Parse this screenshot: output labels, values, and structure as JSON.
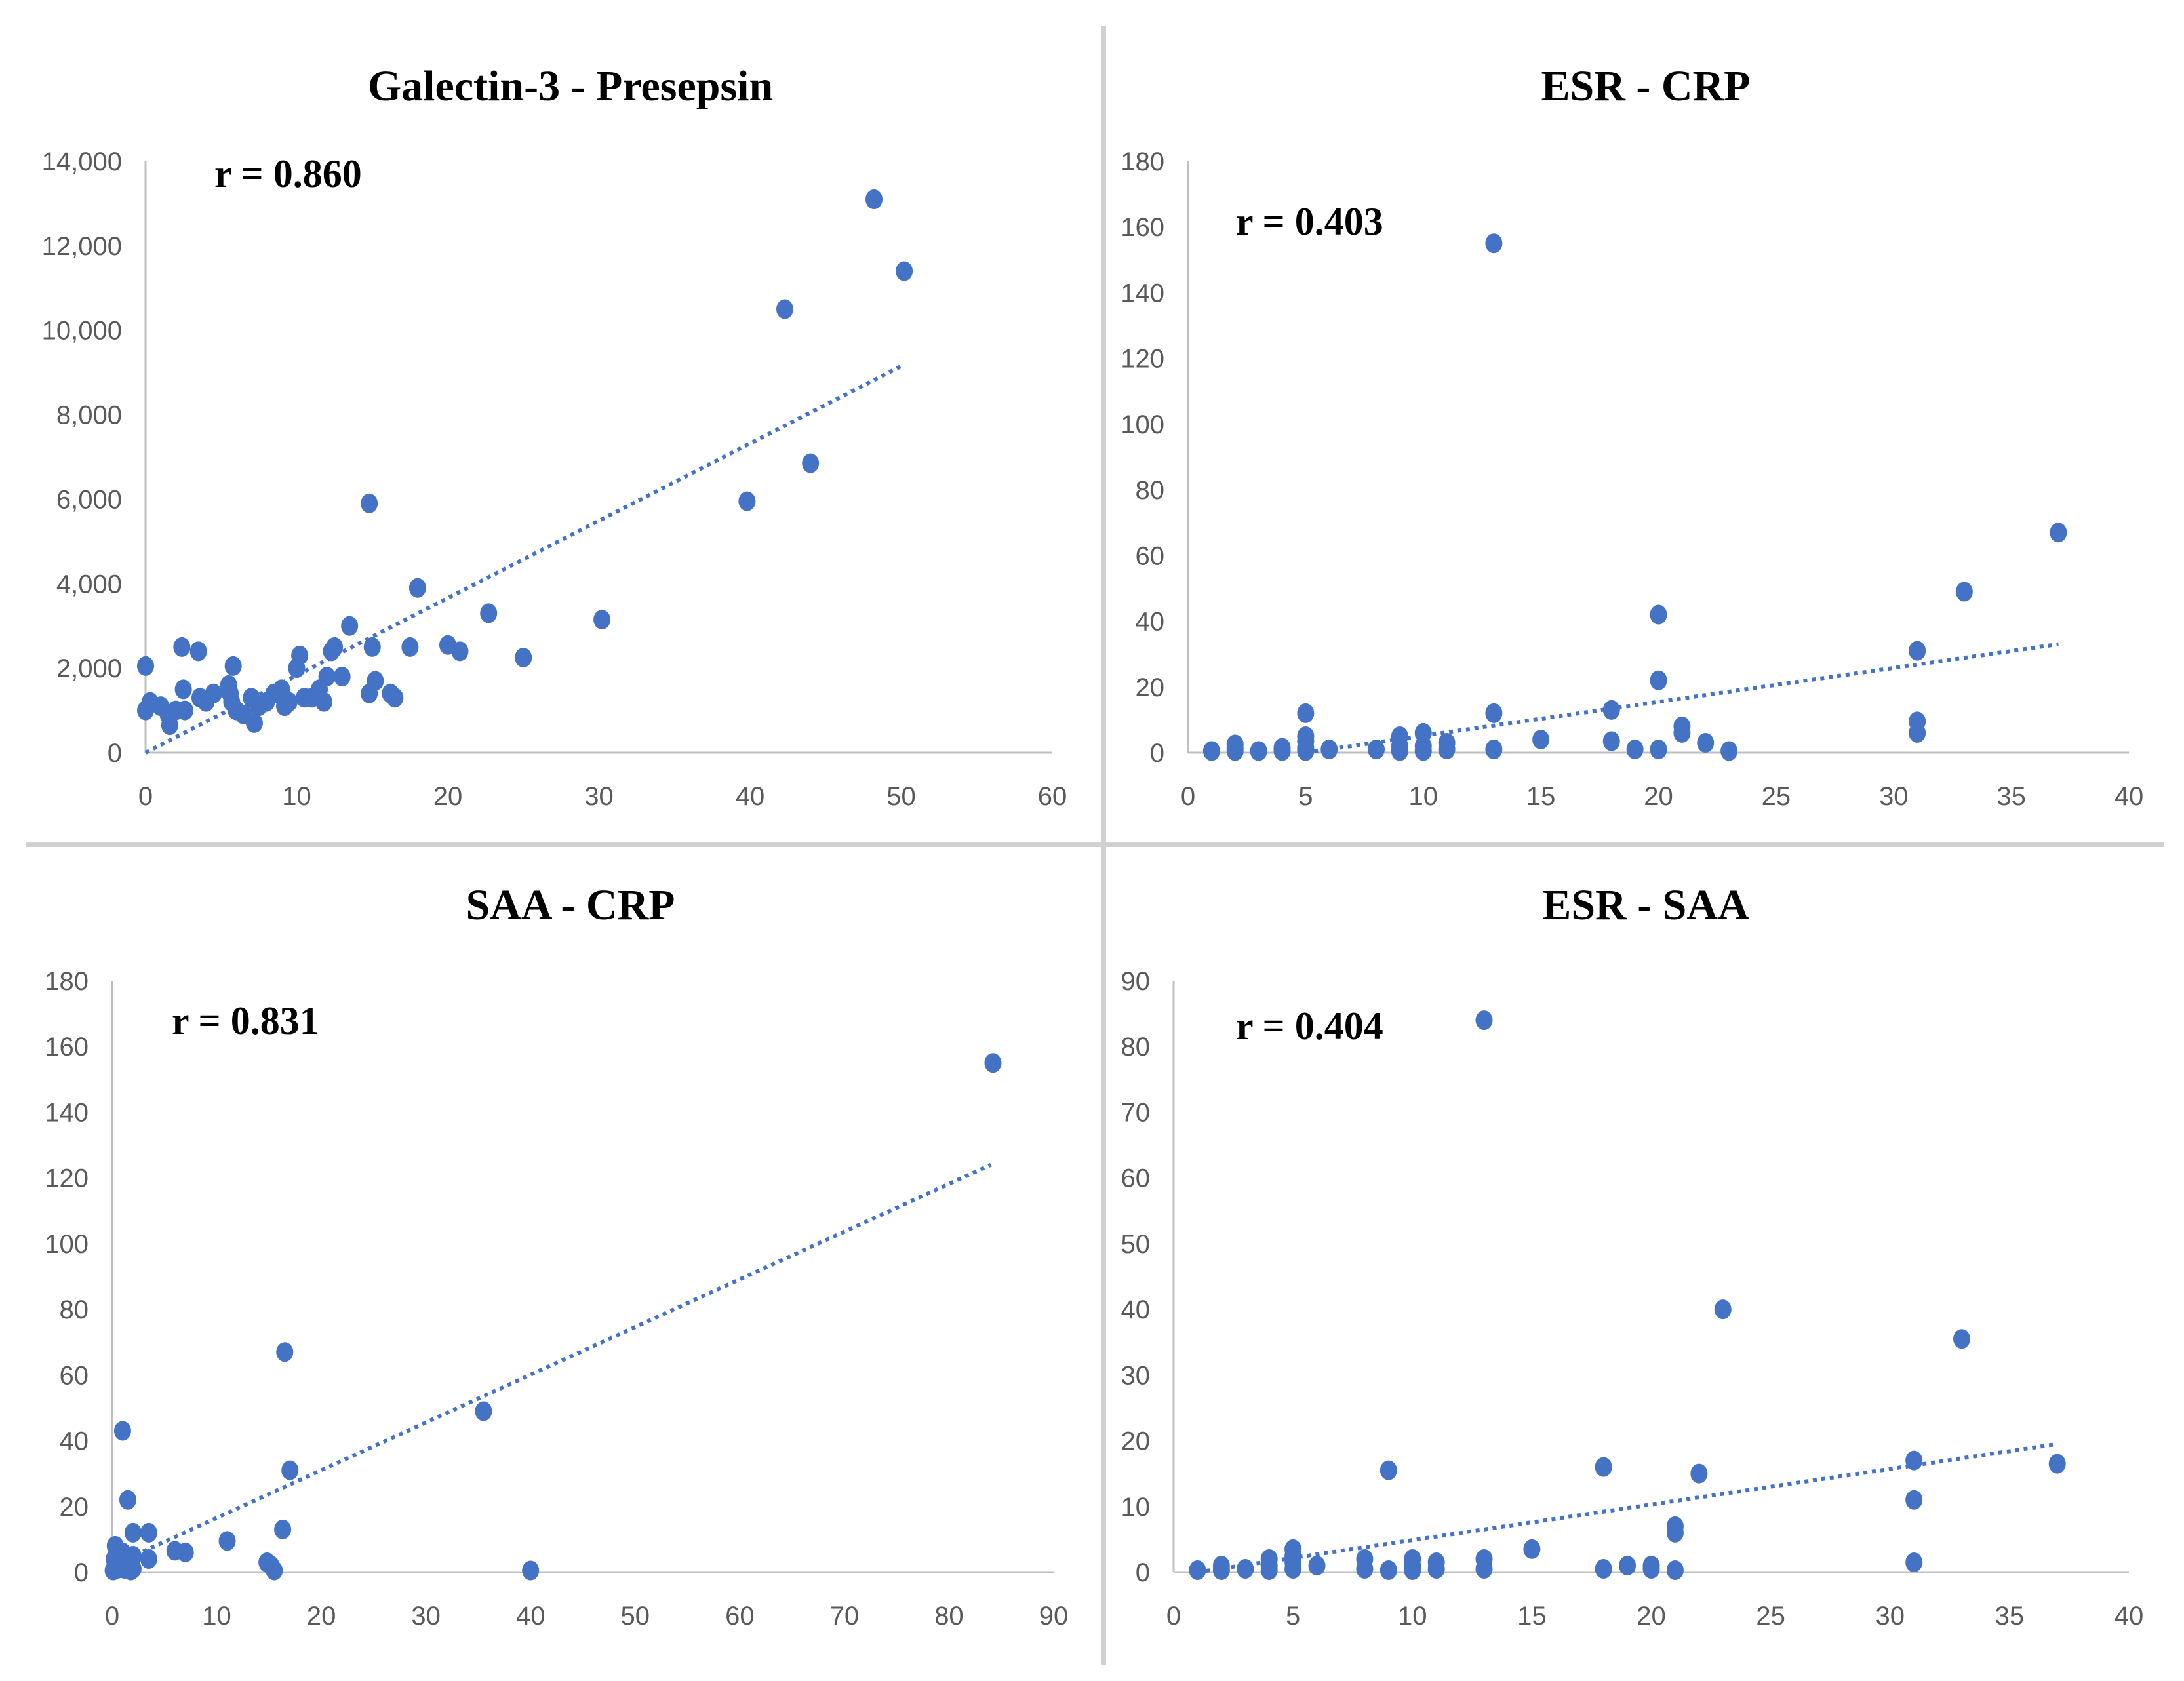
{
  "colors": {
    "marker": "#4472c4",
    "trendline": "#4472c4",
    "axis": "#bfbfbf",
    "tick_text": "#595959"
  },
  "chart_data": [
    {
      "type": "scatter",
      "title": "Galectin-3 - Presepsin",
      "annotation": "r = 0.860",
      "xlim": [
        0,
        60
      ],
      "ylim": [
        0,
        14000
      ],
      "xticks": [
        0,
        10,
        20,
        30,
        40,
        50,
        60
      ],
      "yticks": [
        0,
        2000,
        4000,
        6000,
        8000,
        10000,
        12000,
        14000
      ],
      "xtick_labels": [
        "0",
        "10",
        "20",
        "30",
        "40",
        "50",
        "60"
      ],
      "ytick_labels": [
        "0",
        "2,000",
        "4,000",
        "6,000",
        "8,000",
        "10,000",
        "12,000",
        "14,000"
      ],
      "x": [
        0,
        0,
        0.3,
        1,
        1.5,
        1.6,
        2,
        2.4,
        2.5,
        2.6,
        3.5,
        3.6,
        4,
        4.5,
        5.5,
        5.6,
        5.7,
        5.8,
        6,
        6.5,
        7,
        7.2,
        7.5,
        8,
        8.5,
        9,
        9.2,
        9.5,
        10,
        10.2,
        10.5,
        11,
        11.5,
        11.8,
        12,
        12.3,
        12.5,
        13,
        13.5,
        14.8,
        14.8,
        15,
        15.2,
        16.2,
        16.5,
        17.5,
        18,
        20,
        20.8,
        22.7,
        25,
        30.2,
        39.8,
        42.3,
        44,
        48.2,
        50.2
      ],
      "y": [
        1000,
        2050,
        1200,
        1100,
        900,
        650,
        1000,
        2500,
        1500,
        1000,
        2400,
        1300,
        1200,
        1400,
        1600,
        1400,
        1200,
        2050,
        1000,
        900,
        1300,
        700,
        1100,
        1200,
        1400,
        1500,
        1100,
        1200,
        2000,
        2300,
        1300,
        1300,
        1500,
        1200,
        1800,
        2400,
        2500,
        1800,
        3000,
        5900,
        1400,
        2500,
        1700,
        1400,
        1300,
        2500,
        3900,
        2550,
        2400,
        3300,
        2250,
        3150,
        5950,
        10500,
        6850,
        13100,
        11400
      ],
      "trendline": {
        "x": [
          0,
          50
        ],
        "y": [
          0,
          9150
        ]
      }
    },
    {
      "type": "scatter",
      "title": "ESR - CRP",
      "annotation": "r = 0.403",
      "xlim": [
        0,
        40
      ],
      "ylim": [
        0,
        180
      ],
      "xticks": [
        0,
        5,
        10,
        15,
        20,
        25,
        30,
        35,
        40
      ],
      "yticks": [
        0,
        20,
        40,
        60,
        80,
        100,
        120,
        140,
        160,
        180
      ],
      "xtick_labels": [
        "0",
        "5",
        "10",
        "15",
        "20",
        "25",
        "30",
        "35",
        "40"
      ],
      "ytick_labels": [
        "0",
        "20",
        "40",
        "60",
        "80",
        "100",
        "120",
        "140",
        "160",
        "180"
      ],
      "x": [
        1,
        2,
        2,
        2,
        3,
        4,
        4,
        5,
        5,
        5,
        5,
        5,
        6,
        8,
        9,
        9,
        9,
        10,
        10,
        10,
        11,
        11,
        13,
        13,
        13,
        15,
        18,
        18,
        19,
        20,
        20,
        20,
        21,
        21,
        22,
        23,
        31,
        31,
        31,
        33,
        37
      ],
      "y": [
        0.5,
        0.5,
        1.5,
        2.5,
        0.5,
        0.5,
        1.5,
        0.5,
        1.5,
        3.5,
        5,
        12,
        1,
        1,
        0.5,
        2,
        5,
        0.5,
        2,
        6,
        1,
        3,
        1,
        12,
        155,
        4,
        3.5,
        13,
        1,
        1,
        22,
        42,
        6,
        8,
        3,
        0.5,
        6,
        9.5,
        31,
        49,
        67
      ],
      "trendline": {
        "x": [
          5,
          37
        ],
        "y": [
          0,
          33
        ]
      }
    },
    {
      "type": "scatter",
      "title": "SAA - CRP",
      "annotation": "r = 0.831",
      "xlim": [
        0,
        90
      ],
      "ylim": [
        0,
        180
      ],
      "xticks": [
        0,
        10,
        20,
        30,
        40,
        50,
        60,
        70,
        80,
        90
      ],
      "yticks": [
        0,
        20,
        40,
        60,
        80,
        100,
        120,
        140,
        160,
        180
      ],
      "xtick_labels": [
        "0",
        "10",
        "20",
        "30",
        "40",
        "50",
        "60",
        "70",
        "80",
        "90"
      ],
      "ytick_labels": [
        "0",
        "20",
        "40",
        "60",
        "80",
        "100",
        "120",
        "140",
        "160",
        "180"
      ],
      "x": [
        0.1,
        0.2,
        0.3,
        0.5,
        0.5,
        0.7,
        1,
        1,
        1.2,
        1.5,
        1.5,
        1.8,
        2,
        2,
        2,
        3.5,
        3.5,
        6,
        7,
        11,
        14.8,
        15.2,
        15.5,
        16.3,
        16.5,
        17,
        35.5,
        40,
        84.2
      ],
      "y": [
        0.5,
        4,
        8,
        1,
        3,
        2.5,
        43,
        6,
        1,
        22,
        3,
        0.5,
        12,
        1,
        5,
        4,
        12,
        6.5,
        6,
        9.5,
        3,
        2,
        0.5,
        13,
        67,
        31,
        49,
        0.5,
        155
      ],
      "trendline": {
        "x": [
          0,
          84
        ],
        "y": [
          2,
          124
        ]
      }
    },
    {
      "type": "scatter",
      "title": "ESR - SAA",
      "annotation": "r = 0.404",
      "xlim": [
        0,
        40
      ],
      "ylim": [
        0,
        90
      ],
      "xticks": [
        0,
        5,
        10,
        15,
        20,
        25,
        30,
        35,
        40
      ],
      "yticks": [
        0,
        10,
        20,
        30,
        40,
        50,
        60,
        70,
        80,
        90
      ],
      "xtick_labels": [
        "0",
        "5",
        "10",
        "15",
        "20",
        "25",
        "30",
        "35",
        "40"
      ],
      "ytick_labels": [
        "0",
        "10",
        "20",
        "30",
        "40",
        "50",
        "60",
        "70",
        "80",
        "90"
      ],
      "x": [
        1,
        2,
        2,
        3,
        4,
        4,
        4,
        5,
        5,
        5,
        5,
        6,
        8,
        8,
        9,
        9,
        10,
        10,
        10,
        11,
        11,
        13,
        13,
        13,
        15,
        18,
        18,
        19,
        20,
        20,
        21,
        21,
        21,
        22,
        23,
        31,
        31,
        31,
        33,
        37
      ],
      "y": [
        0.3,
        0.3,
        1,
        0.5,
        0.3,
        1,
        2,
        0.5,
        1.5,
        2.5,
        3.5,
        1,
        0.5,
        2,
        0.3,
        15.5,
        0.3,
        1,
        2,
        0.5,
        1.5,
        0.5,
        2,
        84,
        3.5,
        0.5,
        16,
        1,
        0.5,
        1,
        0.3,
        6,
        7,
        15,
        40,
        1.5,
        11,
        17,
        35.5,
        16.5
      ],
      "trendline": {
        "x": [
          1,
          37
        ],
        "y": [
          0,
          19.5
        ]
      }
    }
  ]
}
